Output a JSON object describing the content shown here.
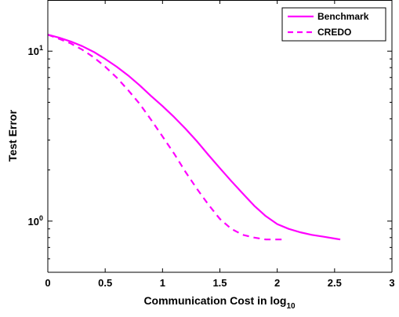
{
  "chart_data": {
    "type": "line",
    "xlabel": "Communication Cost in log",
    "xlabel_subscript": "10",
    "ylabel": "Test Error",
    "yscale": "log",
    "xlim": [
      0,
      3
    ],
    "ylim": [
      0.5,
      20
    ],
    "x_ticks": [
      {
        "value": 0,
        "label": "0"
      },
      {
        "value": 0.5,
        "label": "0.5"
      },
      {
        "value": 1,
        "label": "1"
      },
      {
        "value": 1.5,
        "label": "1.5"
      },
      {
        "value": 2,
        "label": "2"
      },
      {
        "value": 2.5,
        "label": "2.5"
      },
      {
        "value": 3,
        "label": "3"
      }
    ],
    "y_ticks": [
      {
        "value": 1,
        "base": "10",
        "exponent": "0"
      },
      {
        "value": 10,
        "base": "10",
        "exponent": "1"
      }
    ],
    "grid": false,
    "legend_position": "top-right",
    "series": [
      {
        "name": "Benchmark",
        "color": "#ff00ff",
        "dash": "solid",
        "x": [
          0,
          0.1,
          0.2,
          0.3,
          0.4,
          0.5,
          0.6,
          0.7,
          0.8,
          0.9,
          1.0,
          1.1,
          1.2,
          1.3,
          1.4,
          1.5,
          1.6,
          1.7,
          1.8,
          1.9,
          2.0,
          2.1,
          2.2,
          2.3,
          2.4,
          2.5,
          2.55
        ],
        "y": [
          12.5,
          12.0,
          11.4,
          10.7,
          9.9,
          9.0,
          8.1,
          7.2,
          6.3,
          5.45,
          4.75,
          4.1,
          3.5,
          2.95,
          2.45,
          2.05,
          1.72,
          1.45,
          1.23,
          1.07,
          0.96,
          0.9,
          0.86,
          0.83,
          0.81,
          0.79,
          0.78
        ]
      },
      {
        "name": "CREDO",
        "color": "#ff00ff",
        "dash": "dashed",
        "x": [
          0,
          0.1,
          0.2,
          0.3,
          0.4,
          0.5,
          0.6,
          0.7,
          0.8,
          0.9,
          1.0,
          1.1,
          1.2,
          1.3,
          1.4,
          1.5,
          1.6,
          1.7,
          1.8,
          1.9,
          2.0,
          2.07
        ],
        "y": [
          12.5,
          11.8,
          11.1,
          10.2,
          9.2,
          8.1,
          7.0,
          5.9,
          4.9,
          3.95,
          3.15,
          2.5,
          1.95,
          1.55,
          1.25,
          1.03,
          0.9,
          0.83,
          0.8,
          0.78,
          0.78,
          0.78
        ]
      }
    ]
  }
}
